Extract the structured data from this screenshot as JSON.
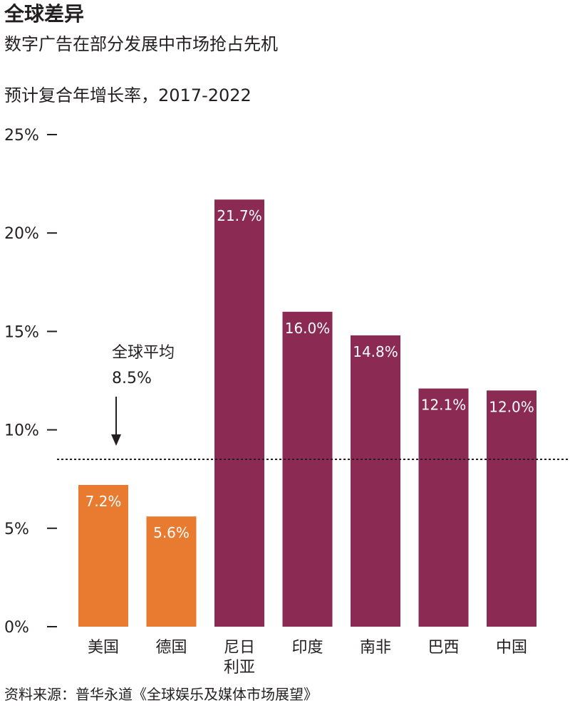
{
  "chart_data": {
    "type": "bar",
    "title": "全球差异",
    "subtitle": "数字广告在部分发展中市场抢占先机",
    "ylabel": "预计复合年增长率，2017-2022",
    "ylim": [
      0,
      25
    ],
    "yticks": [
      0,
      5,
      10,
      15,
      20,
      25
    ],
    "ytick_labels": [
      "0%",
      "5%",
      "10%",
      "15%",
      "20%",
      "25%"
    ],
    "categories": [
      [
        "美国"
      ],
      [
        "德国"
      ],
      [
        "尼日",
        "利亚"
      ],
      [
        "印度"
      ],
      [
        "南非"
      ],
      [
        "巴西"
      ],
      [
        "中国"
      ]
    ],
    "values": [
      7.2,
      5.6,
      21.7,
      16.0,
      14.8,
      12.1,
      12.0
    ],
    "value_labels": [
      "7.2%",
      "5.6%",
      "21.7%",
      "16.0%",
      "14.8%",
      "12.1%",
      "12.0%"
    ],
    "bar_colors": [
      "#e87b2f",
      "#e87b2f",
      "#8b2a52",
      "#8b2a52",
      "#8b2a52",
      "#8b2a52",
      "#8b2a52"
    ],
    "reference_line": {
      "value": 8.5,
      "label_line1": "全球平均",
      "label_line2": "8.5%"
    },
    "grid": false,
    "source": "资料来源：普华永道《全球娱乐及媒体市场展望》"
  }
}
